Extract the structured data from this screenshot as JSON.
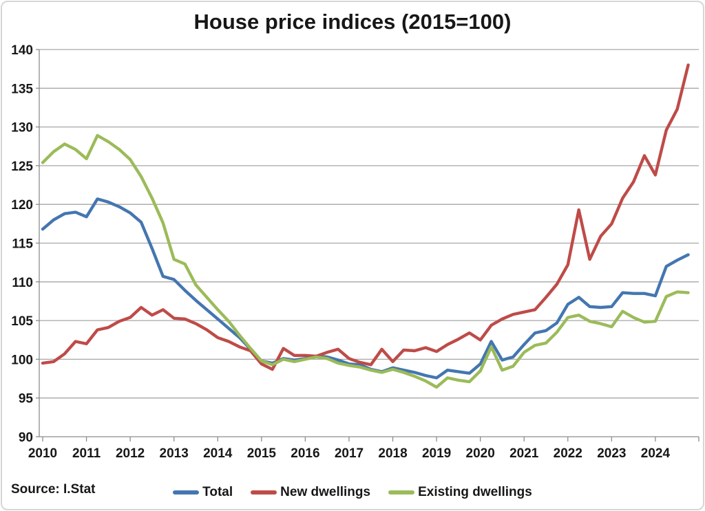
{
  "page": {
    "background": "#ffffff",
    "border_color": "#d6d6d6"
  },
  "chart": {
    "title": "House price indices (2015=100)",
    "source": "Source: I.Stat",
    "legend": [
      {
        "label": "Total",
        "color": "#4476B0"
      },
      {
        "label": "New dwellings",
        "color": "#BE4B48"
      },
      {
        "label": "Existing dwellings",
        "color": "#9BBB59"
      }
    ]
  },
  "chart_data": {
    "type": "line",
    "title": "House price indices (2015=100)",
    "source": "Source: I.Stat",
    "frequency": "quarterly",
    "x_start": "2010-Q1",
    "x_end": "2024-Q4",
    "x_tick_labels": [
      "2010",
      "2011",
      "2012",
      "2013",
      "2014",
      "2015",
      "2016",
      "2017",
      "2018",
      "2019",
      "2020",
      "2021",
      "2022",
      "2023",
      "2024"
    ],
    "ylim": [
      90,
      140
    ],
    "y_tick_step": 5,
    "y_tick_labels": [
      "90",
      "95",
      "100",
      "105",
      "110",
      "115",
      "120",
      "125",
      "130",
      "135",
      "140"
    ],
    "grid": "horizontal",
    "legend_position": "bottom",
    "series": [
      {
        "name": "Total",
        "color": "#4476B0",
        "values": [
          116.8,
          118.0,
          118.8,
          119.0,
          118.4,
          120.7,
          120.3,
          119.7,
          118.9,
          117.7,
          114.3,
          110.7,
          110.3,
          108.9,
          107.6,
          106.4,
          105.2,
          104.0,
          102.8,
          101.3,
          99.8,
          99.5,
          100.1,
          99.9,
          100.1,
          100.4,
          100.3,
          99.9,
          99.4,
          99.3,
          98.7,
          98.4,
          98.9,
          98.6,
          98.3,
          97.9,
          97.6,
          98.6,
          98.4,
          98.2,
          99.4,
          102.3,
          99.9,
          100.3,
          101.9,
          103.4,
          103.7,
          104.7,
          107.1,
          108.0,
          106.8,
          106.7,
          106.8,
          108.6,
          108.5,
          108.5,
          108.2,
          112.0,
          112.8,
          113.5
        ]
      },
      {
        "name": "New dwellings",
        "color": "#BE4B48",
        "values": [
          99.5,
          99.7,
          100.7,
          102.3,
          102.0,
          103.8,
          104.1,
          104.9,
          105.4,
          106.7,
          105.7,
          106.4,
          105.3,
          105.2,
          104.6,
          103.8,
          102.8,
          102.3,
          101.6,
          101.1,
          99.4,
          98.7,
          101.4,
          100.5,
          100.5,
          100.4,
          100.9,
          101.3,
          100.1,
          99.6,
          99.3,
          101.3,
          99.7,
          101.2,
          101.1,
          101.5,
          101.0,
          101.9,
          102.6,
          103.4,
          102.5,
          104.4,
          105.2,
          105.8,
          106.1,
          106.4,
          108.0,
          109.7,
          112.2,
          119.3,
          112.9,
          115.9,
          117.5,
          120.8,
          122.9,
          126.3,
          123.8,
          129.6,
          132.3,
          138.0
        ]
      },
      {
        "name": "Existing dwellings",
        "color": "#9BBB59",
        "values": [
          125.4,
          126.8,
          127.8,
          127.1,
          125.9,
          128.9,
          128.1,
          127.1,
          125.8,
          123.6,
          120.8,
          117.6,
          112.9,
          112.3,
          109.6,
          108.0,
          106.4,
          104.9,
          103.1,
          101.4,
          99.8,
          99.3,
          100.0,
          99.7,
          100.0,
          100.3,
          100.1,
          99.5,
          99.2,
          99.0,
          98.6,
          98.3,
          98.7,
          98.3,
          97.8,
          97.2,
          96.4,
          97.6,
          97.3,
          97.1,
          98.5,
          101.6,
          98.6,
          99.1,
          100.9,
          101.8,
          102.1,
          103.5,
          105.4,
          105.7,
          104.9,
          104.6,
          104.2,
          106.2,
          105.4,
          104.8,
          104.9,
          108.1,
          108.7,
          108.6
        ]
      }
    ]
  }
}
